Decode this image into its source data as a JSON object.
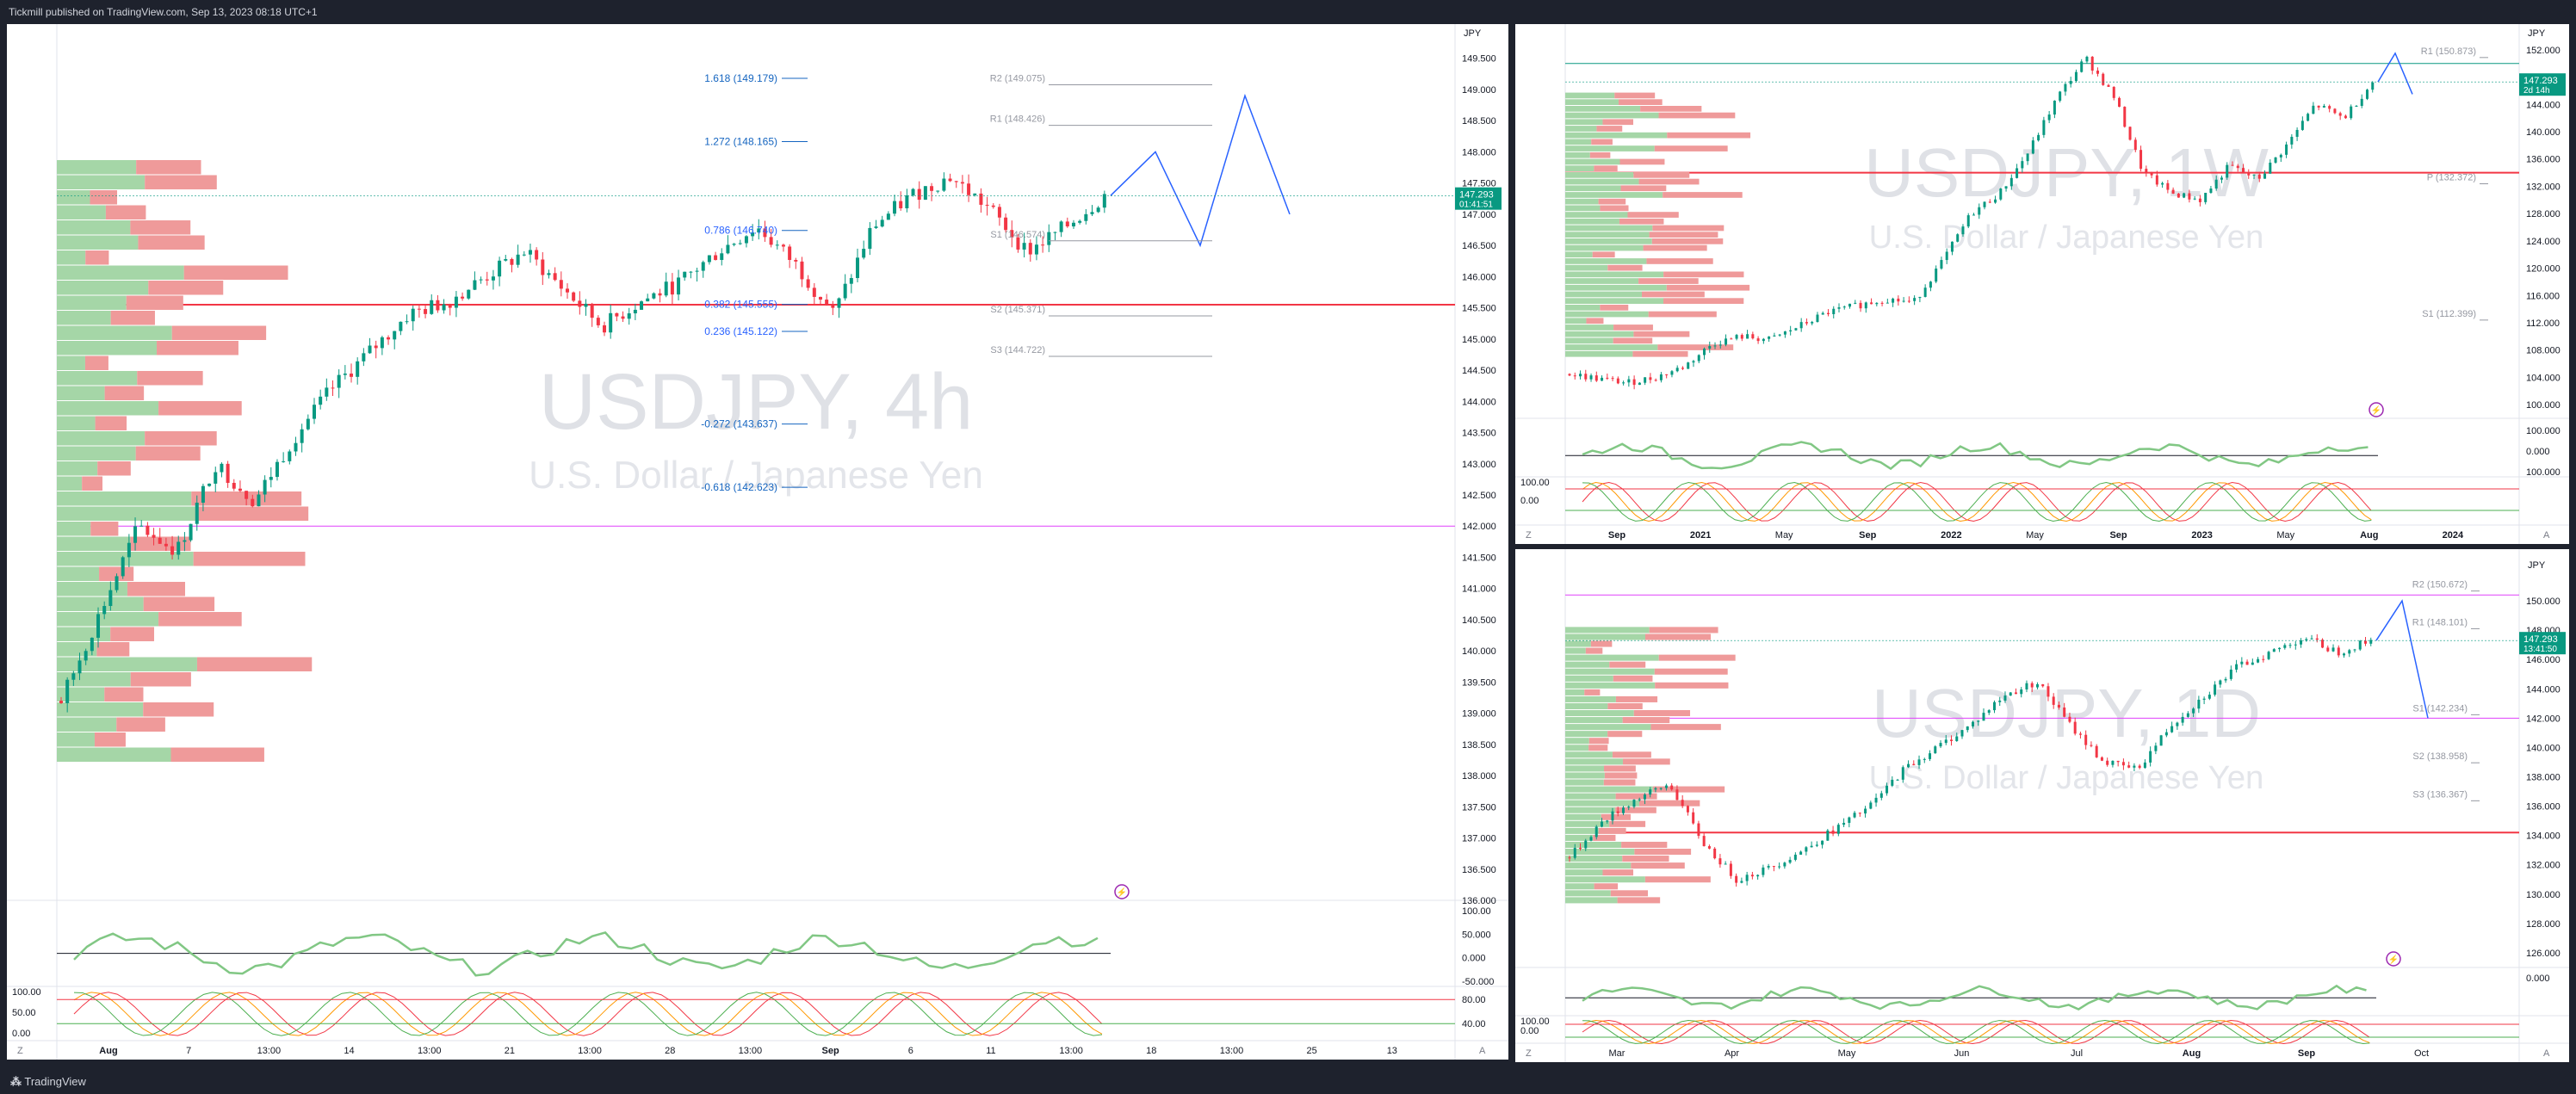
{
  "header": {
    "published": "Tickmill published on TradingView.com, Sep 13, 2023 08:18 UTC+1"
  },
  "footer": {
    "brand": "TradingView"
  },
  "colors": {
    "up": "#089981",
    "down": "#f23645",
    "green_line": "#4caf50",
    "red_line": "#f44336",
    "blue": "#2962ff",
    "fib_blue": "#1565c0",
    "magenta": "#e040fb",
    "grey": "#9598a1",
    "price_bg": "#089981"
  },
  "icons": [
    "lightning-icon",
    "logo-icon"
  ],
  "chart_data": [
    {
      "type": "line",
      "panel": "4h",
      "symbol_watermark": "USDJPY, 4h",
      "description_watermark": "U.S. Dollar / Japanese Yen",
      "currency": "JPY",
      "ylim": [
        136.0,
        149.8
      ],
      "y_ticks": [
        "149.500",
        "149.000",
        "148.500",
        "148.000",
        "147.500",
        "147.000",
        "146.500",
        "146.000",
        "145.500",
        "145.000",
        "144.500",
        "144.000",
        "143.500",
        "143.000",
        "142.500",
        "142.000",
        "141.500",
        "141.000",
        "140.500",
        "140.000",
        "139.500",
        "139.000",
        "138.500",
        "138.000",
        "137.500",
        "137.000",
        "136.500",
        "136.000"
      ],
      "x_ticks": [
        "Aug",
        "7",
        "13:00",
        "14",
        "13:00",
        "21",
        "13:00",
        "28",
        "13:00",
        "Sep",
        "6",
        "11",
        "13:00",
        "18",
        "13:00",
        "25",
        "13"
      ],
      "last_price": "147.293",
      "countdown": "01:41:51",
      "close_path": [
        139.2,
        140.6,
        142.0,
        141.6,
        143.0,
        142.4,
        143.4,
        144.2,
        144.8,
        145.4,
        145.6,
        146.0,
        146.4,
        145.8,
        145.2,
        145.6,
        145.9,
        146.4,
        146.8,
        146.2,
        145.4,
        146.8,
        147.3,
        147.6,
        147.1,
        146.4,
        146.8,
        147.3
      ],
      "projection": [
        147.3,
        148.0,
        146.5,
        148.9,
        147.0
      ],
      "fib_levels": [
        {
          "label": "1.618 (149.179)",
          "value": 149.179
        },
        {
          "label": "1.272 (148.165)",
          "value": 148.165
        },
        {
          "label": "0.786 (146.740)",
          "value": 146.74
        },
        {
          "label": "0.382 (145.555)",
          "value": 145.555
        },
        {
          "label": "0.236 (145.122)",
          "value": 145.122
        },
        {
          "label": "-0.272 (143.637)",
          "value": 143.637
        },
        {
          "label": "-0.618 (142.623)",
          "value": 142.623
        }
      ],
      "pivots": [
        {
          "label": "R2 (149.075)",
          "value": 149.075
        },
        {
          "label": "R1 (148.426)",
          "value": 148.426
        },
        {
          "label": "S1 (146.574)",
          "value": 146.574
        },
        {
          "label": "S2 (145.371)",
          "value": 145.371
        },
        {
          "label": "S3 (144.722)",
          "value": 144.722
        }
      ],
      "horizontal_lines": [
        {
          "value": 145.55,
          "color": "#f23645"
        },
        {
          "value": 142.0,
          "color": "#e040fb"
        }
      ],
      "osc1_ticks": [
        "100.00",
        "50.000",
        "0.000",
        "-50.000"
      ],
      "osc2_ticks": [
        "100.00",
        "50.00",
        "0.00",
        "80.00",
        "40.00"
      ]
    },
    {
      "type": "line",
      "panel": "1W",
      "symbol_watermark": "USDJPY, 1W",
      "description_watermark": "U.S. Dollar / Japanese Yen",
      "currency": "JPY",
      "ylim": [
        98.0,
        153.5
      ],
      "y_ticks": [
        "152.000",
        "148.000",
        "144.000",
        "140.000",
        "136.000",
        "132.000",
        "128.000",
        "124.000",
        "120.000",
        "116.000",
        "112.000",
        "108.000",
        "104.000",
        "100.000"
      ],
      "x_ticks": [
        "Sep",
        "2021",
        "May",
        "Sep",
        "2022",
        "May",
        "Sep",
        "2023",
        "May",
        "Aug",
        "2024"
      ],
      "last_price": "147.293",
      "countdown": "2d 14h",
      "close_path": [
        104.5,
        103.8,
        103.2,
        104.0,
        105.6,
        109.0,
        110.0,
        109.5,
        111.5,
        113.5,
        114.5,
        115.5,
        115.0,
        121.0,
        128.0,
        131.0,
        137.0,
        145.0,
        150.8,
        145.0,
        134.0,
        131.0,
        130.0,
        135.0,
        133.0,
        138.0,
        144.0,
        142.0,
        147.3
      ],
      "projection": [
        147.3,
        151.5,
        145.5
      ],
      "pivots": [
        {
          "label": "R1 (150.873)",
          "value": 150.873
        },
        {
          "label": "P (132.372)",
          "value": 132.372
        },
        {
          "label": "S1 (112.399)",
          "value": 112.399
        }
      ],
      "horizontal_lines": [
        {
          "value": 134.0,
          "color": "#f23645"
        },
        {
          "value": 150.0,
          "color": "#089981"
        }
      ],
      "osc1_ticks": [
        "100.000",
        "0.000",
        "100.000"
      ],
      "osc2_ticks": [
        "100.00",
        "0.00"
      ]
    },
    {
      "type": "line",
      "panel": "1D",
      "symbol_watermark": "USDJPY, 1D",
      "description_watermark": "U.S. Dollar / Japanese Yen",
      "currency": "JPY",
      "ylim": [
        125.0,
        152.0
      ],
      "y_ticks": [
        "150.000",
        "148.000",
        "146.000",
        "144.000",
        "142.000",
        "140.000",
        "138.000",
        "136.000",
        "134.000",
        "132.000",
        "130.000",
        "128.000",
        "126.000"
      ],
      "x_ticks": [
        "Mar",
        "Apr",
        "May",
        "Jun",
        "Jul",
        "Aug",
        "Sep",
        "Oct"
      ],
      "last_price": "147.293",
      "countdown": "13:41:50",
      "close_path": [
        132.5,
        135.0,
        136.5,
        137.5,
        133.5,
        131.0,
        131.8,
        133.0,
        134.5,
        136.0,
        138.5,
        140.0,
        141.5,
        143.5,
        144.5,
        141.5,
        139.0,
        138.5,
        141.5,
        143.5,
        145.5,
        146.5,
        147.5,
        146.5,
        147.3
      ],
      "projection": [
        147.3,
        150.0,
        142.0
      ],
      "pivots": [
        {
          "label": "R2 (150.672)",
          "value": 150.672
        },
        {
          "label": "R1 (148.101)",
          "value": 148.101
        },
        {
          "label": "S1 (142.234)",
          "value": 142.234
        },
        {
          "label": "S2 (138.958)",
          "value": 138.958
        },
        {
          "label": "S3 (136.367)",
          "value": 136.367
        }
      ],
      "horizontal_lines": [
        {
          "value": 134.2,
          "color": "#f23645"
        },
        {
          "value": 142.0,
          "color": "#e040fb"
        },
        {
          "value": 150.4,
          "color": "#e040fb"
        }
      ],
      "osc1_ticks": [
        "0.000"
      ],
      "osc2_ticks": [
        "100.00",
        "0.00"
      ]
    }
  ]
}
